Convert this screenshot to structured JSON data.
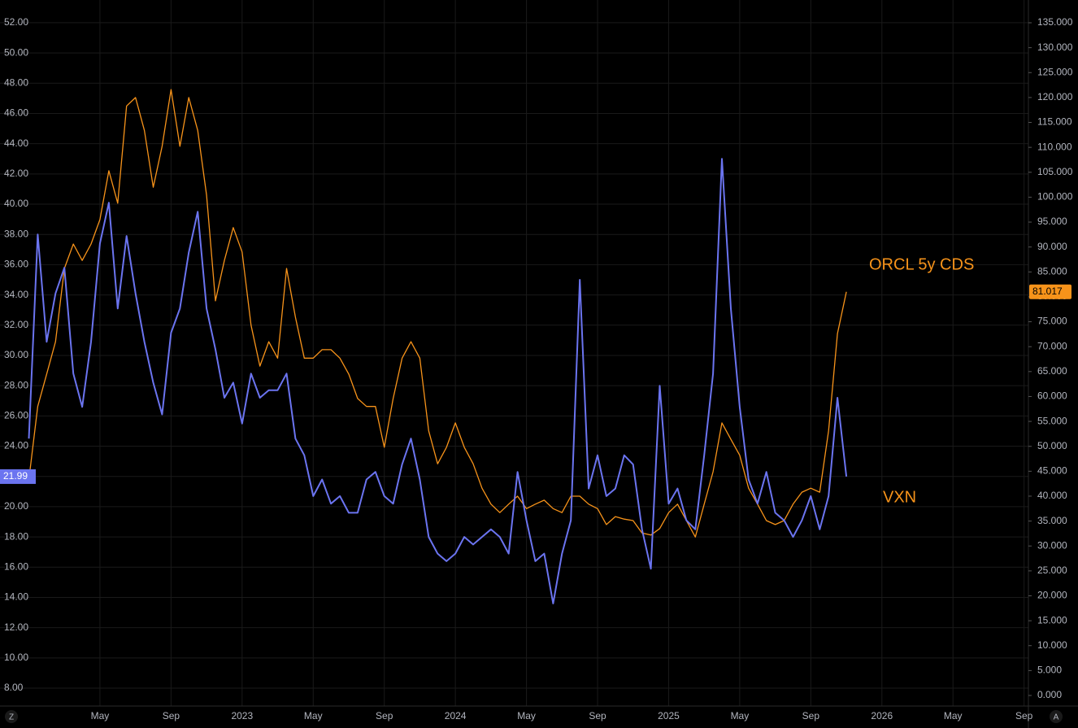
{
  "chart_data": {
    "type": "line",
    "categories": [
      null,
      null,
      null,
      null,
      null,
      null,
      null,
      null,
      "May",
      null,
      null,
      null,
      null,
      null,
      null,
      null,
      "Sep",
      null,
      null,
      null,
      null,
      null,
      null,
      null,
      "2023",
      null,
      null,
      null,
      null,
      null,
      null,
      null,
      "May",
      null,
      null,
      null,
      null,
      null,
      null,
      null,
      "Sep",
      null,
      null,
      null,
      null,
      null,
      null,
      null,
      "2024",
      null,
      null,
      null,
      null,
      null,
      null,
      null,
      "May",
      null,
      null,
      null,
      null,
      null,
      null,
      null,
      "Sep",
      null,
      null,
      null,
      null,
      null,
      null,
      null,
      "2025",
      null,
      null,
      null,
      null,
      null,
      null,
      null,
      "May",
      null,
      null,
      null,
      null,
      null,
      null,
      null,
      "Sep",
      null,
      null,
      null,
      null,
      null,
      null,
      null,
      "2026",
      null,
      null,
      null,
      null,
      null,
      null,
      null,
      "May",
      null,
      null,
      null,
      null,
      null,
      null,
      null,
      "Sep"
    ],
    "series": [
      {
        "name": "VXN",
        "color": "#6b74f0",
        "axis": "y",
        "values": [
          24.5,
          38.0,
          30.9,
          34.1,
          35.8,
          28.8,
          26.6,
          30.9,
          37.4,
          40.1,
          33.1,
          37.9,
          34.1,
          30.9,
          28.2,
          26.1,
          31.5,
          33.1,
          36.8,
          39.5,
          33.1,
          30.4,
          27.2,
          28.2,
          25.5,
          28.8,
          27.2,
          27.7,
          27.7,
          28.8,
          24.5,
          23.4,
          20.7,
          21.8,
          20.2,
          20.7,
          19.6,
          19.6,
          21.8,
          22.3,
          20.7,
          20.2,
          22.8,
          24.5,
          21.8,
          18.0,
          16.9,
          16.4,
          16.9,
          18.0,
          17.5,
          18.0,
          18.5,
          18.0,
          16.9,
          22.3,
          19.1,
          16.4,
          16.9,
          13.6,
          16.9,
          19.1,
          35.0,
          21.2,
          23.4,
          20.7,
          21.2,
          23.4,
          22.8,
          18.5,
          15.9,
          28.0,
          20.2,
          21.2,
          19.1,
          18.5,
          23.4,
          28.8,
          43.0,
          33.1,
          26.6,
          21.8,
          20.2,
          22.3,
          19.6,
          19.1,
          18.0,
          19.1,
          20.7,
          18.5,
          20.7,
          27.2,
          21.99,
          null,
          null,
          null,
          null,
          null,
          null,
          null,
          null,
          null,
          null,
          null,
          null,
          null,
          null,
          null,
          null,
          null,
          null,
          null,
          null
        ]
      },
      {
        "name": "ORCL 5y CDS",
        "color": "#f7931a",
        "axis": "y2",
        "values": [
          43.3,
          58.0,
          64.5,
          71.0,
          85.7,
          90.6,
          87.3,
          90.6,
          95.5,
          105.3,
          98.8,
          118.3,
          120.0,
          113.4,
          102.0,
          110.2,
          121.6,
          110.2,
          120.0,
          113.4,
          100.4,
          79.2,
          87.3,
          93.9,
          89.0,
          74.3,
          66.1,
          71.0,
          67.7,
          85.7,
          75.9,
          67.7,
          67.7,
          69.4,
          69.4,
          67.7,
          64.5,
          59.6,
          58.0,
          58.0,
          49.8,
          59.6,
          67.7,
          71.0,
          67.7,
          53.1,
          46.5,
          49.8,
          54.7,
          49.8,
          46.5,
          41.6,
          38.4,
          36.7,
          38.4,
          40.0,
          37.5,
          38.4,
          39.2,
          37.5,
          36.7,
          40.0,
          40.0,
          38.4,
          37.5,
          34.3,
          35.9,
          35.4,
          35.1,
          32.6,
          32.2,
          33.5,
          36.7,
          38.4,
          35.1,
          31.8,
          38.4,
          44.9,
          54.7,
          51.4,
          48.2,
          41.6,
          38.4,
          35.1,
          34.3,
          35.1,
          38.4,
          40.8,
          41.6,
          40.8,
          53.1,
          72.6,
          81.017,
          null,
          null,
          null,
          null,
          null,
          null,
          null,
          null,
          null,
          null,
          null,
          null,
          null,
          null,
          null,
          null,
          null,
          null,
          null,
          null
        ]
      }
    ],
    "ylim": [
      6.82,
      53.5
    ],
    "yticks": [
      {
        "value": 8,
        "label": "8.00"
      },
      {
        "value": 10,
        "label": "10.00"
      },
      {
        "value": 12,
        "label": "12.00"
      },
      {
        "value": 14,
        "label": "14.00"
      },
      {
        "value": 16,
        "label": "16.00"
      },
      {
        "value": 18,
        "label": "18.00"
      },
      {
        "value": 20,
        "label": "20.00"
      },
      {
        "value": 22,
        "label": "22.00"
      },
      {
        "value": 24,
        "label": "24.00"
      },
      {
        "value": 26,
        "label": "26.00"
      },
      {
        "value": 28,
        "label": "28.00"
      },
      {
        "value": 30,
        "label": "30.00"
      },
      {
        "value": 32,
        "label": "32.00"
      },
      {
        "value": 34,
        "label": "34.00"
      },
      {
        "value": 36,
        "label": "36.00"
      },
      {
        "value": 38,
        "label": "38.00"
      },
      {
        "value": 40,
        "label": "40.00"
      },
      {
        "value": 42,
        "label": "42.00"
      },
      {
        "value": 44,
        "label": "44.00"
      },
      {
        "value": 46,
        "label": "46.00"
      },
      {
        "value": 48,
        "label": "48.00"
      },
      {
        "value": 50,
        "label": "50.00"
      },
      {
        "value": 52,
        "label": "52.00"
      }
    ],
    "y2lim": [
      -2.12,
      139.57
    ],
    "y2ticks": [
      {
        "value": 0,
        "label": "0.000"
      },
      {
        "value": 5,
        "label": "5.000"
      },
      {
        "value": 10,
        "label": "10.000"
      },
      {
        "value": 15,
        "label": "15.000"
      },
      {
        "value": 20,
        "label": "20.000"
      },
      {
        "value": 25,
        "label": "25.000"
      },
      {
        "value": 30,
        "label": "30.000"
      },
      {
        "value": 35,
        "label": "35.000"
      },
      {
        "value": 40,
        "label": "40.000"
      },
      {
        "value": 45,
        "label": "45.000"
      },
      {
        "value": 50,
        "label": "50.000"
      },
      {
        "value": 55,
        "label": "55.000"
      },
      {
        "value": 60,
        "label": "60.000"
      },
      {
        "value": 65,
        "label": "65.000"
      },
      {
        "value": 70,
        "label": "70.000"
      },
      {
        "value": 75,
        "label": "75.000"
      },
      {
        "value": 80,
        "label": "80.000"
      },
      {
        "value": 85,
        "label": "85.000"
      },
      {
        "value": 90,
        "label": "90.000"
      },
      {
        "value": 95,
        "label": "95.000"
      },
      {
        "value": 100,
        "label": "100.000"
      },
      {
        "value": 105,
        "label": "105.000"
      },
      {
        "value": 110,
        "label": "110.000"
      },
      {
        "value": 115,
        "label": "115.000"
      },
      {
        "value": 120,
        "label": "120.000"
      },
      {
        "value": 125,
        "label": "125.000"
      },
      {
        "value": 130,
        "label": "130.000"
      },
      {
        "value": 135,
        "label": "135.000"
      }
    ],
    "grid": true,
    "axis_buttons": [
      "Z",
      "A"
    ]
  }
}
